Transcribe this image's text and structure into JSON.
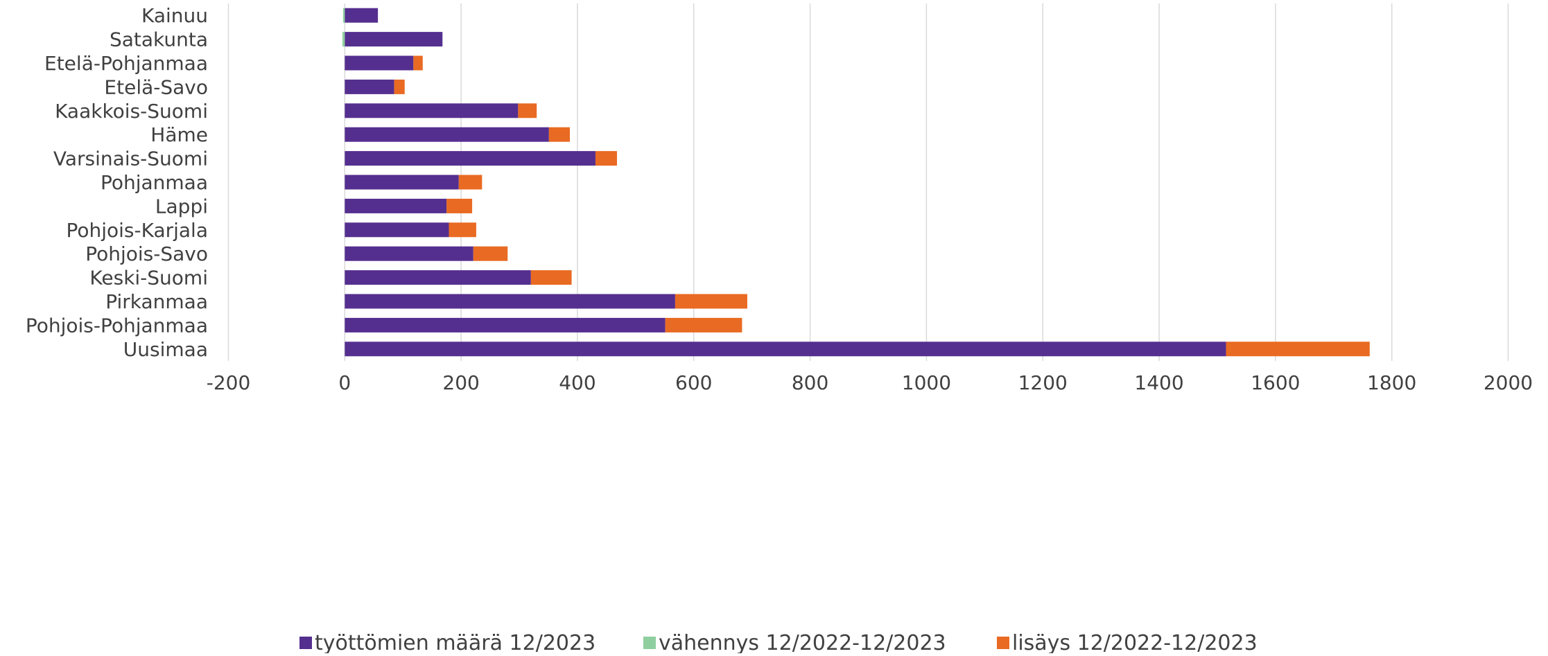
{
  "chart_data": {
    "type": "bar",
    "orientation": "horizontal",
    "stacked": true,
    "categories": [
      "Kainuu",
      "Satakunta",
      "Etelä-Pohjanmaa",
      "Etelä-Savo",
      "Kaakkois-Suomi",
      "Häme",
      "Varsinais-Suomi",
      "Pohjanmaa",
      "Lappi",
      "Pohjois-Karjala",
      "Pohjois-Savo",
      "Keski-Suomi",
      "Pirkanmaa",
      "Pohjois-Pohjanmaa",
      "Uusimaa"
    ],
    "series": [
      {
        "name": "työttömien määrä 12/2023",
        "color": "#552f8f",
        "values": [
          57,
          168,
          118,
          85,
          298,
          351,
          431,
          196,
          175,
          179,
          221,
          320,
          568,
          551,
          1515
        ]
      },
      {
        "name": "vähennys 12/2022-12/2023",
        "color": "#8fcf9f",
        "values": [
          -3,
          -4,
          0,
          0,
          0,
          0,
          0,
          0,
          0,
          0,
          0,
          0,
          0,
          0,
          0
        ]
      },
      {
        "name": "lisäys 12/2022-12/2023",
        "color": "#e96a22",
        "values": [
          0,
          0,
          16,
          18,
          32,
          36,
          37,
          40,
          44,
          47,
          59,
          70,
          124,
          132,
          247
        ]
      }
    ],
    "xlim": [
      -200,
      2000
    ],
    "xticks": [
      "-200",
      "0",
      "200",
      "400",
      "600",
      "800",
      "1000",
      "1200",
      "1400",
      "1600",
      "1800",
      "2000"
    ],
    "grid": true,
    "legend_position": "bottom",
    "title": "",
    "xlabel": "",
    "ylabel": ""
  }
}
